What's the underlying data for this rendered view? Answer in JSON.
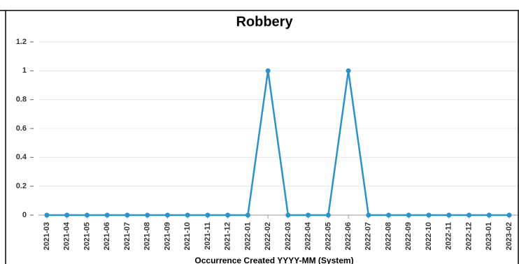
{
  "chart_data": {
    "type": "line",
    "title": "Robbery",
    "x_label": "Occurrence Created YYYY-MM (System)",
    "categories": [
      "2021-03",
      "2021-04",
      "2021-05",
      "2021-06",
      "2021-07",
      "2021-08",
      "2021-09",
      "2021-10",
      "2021-11",
      "2021-12",
      "2022-01",
      "2022-02",
      "2022-03",
      "2022-04",
      "2022-05",
      "2022-06",
      "2022-07",
      "2022-08",
      "2022-09",
      "2022-10",
      "2022-11",
      "2022-12",
      "2023-01",
      "2023-02"
    ],
    "values": [
      0,
      0,
      0,
      0,
      0,
      0,
      0,
      0,
      0,
      0,
      0,
      1,
      0,
      0,
      0,
      1,
      0,
      0,
      0,
      0,
      0,
      0,
      0,
      0
    ],
    "color": "#2a93c9",
    "ylim": [
      0,
      1.2
    ],
    "yticks": [
      0,
      0.2,
      0.4,
      0.6,
      0.8,
      1,
      1.2
    ],
    "grid": true
  }
}
